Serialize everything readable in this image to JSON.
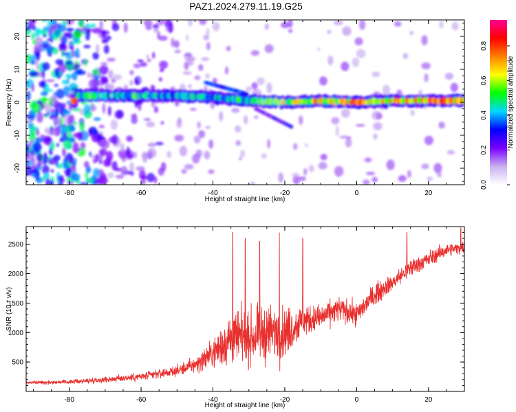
{
  "title": "PAZ1.2024.279.11.19.G25",
  "colors": {
    "snr_line": "#e8302e",
    "frame": "#000000"
  },
  "chart_data": [
    {
      "type": "heatmap",
      "title": "PAZ1.2024.279.11.19.G25",
      "xlabel": "Height of straight line (km)",
      "ylabel": "Frequency (Hz)",
      "xlim": [
        -92,
        30
      ],
      "ylim": [
        -25,
        25
      ],
      "xticks": [
        -80,
        -60,
        -40,
        -20,
        0,
        20
      ],
      "yticks": [
        -20,
        -10,
        0,
        10,
        20
      ],
      "colorbar": {
        "label": "Normalized spectral amplitude",
        "range": [
          0,
          0.95
        ],
        "ticks": [
          "0.0",
          "0.2",
          "0.4",
          "0.6",
          "0.8"
        ],
        "tick_values": [
          0,
          0.2,
          0.4,
          0.6,
          0.8
        ],
        "colormap": [
          "#ffffff",
          "#c9b0f0",
          "#7a00ff",
          "#0000ff",
          "#00d8ff",
          "#00ff00",
          "#ffff00",
          "#ff8000",
          "#ff0000",
          "#ff0090"
        ]
      },
      "ridge": {
        "description_points": [
          {
            "x": -78,
            "y": 2.0,
            "amp": 0.5
          },
          {
            "x": -70,
            "y": 2.0,
            "amp": 0.6
          },
          {
            "x": -60,
            "y": 2.0,
            "amp": 0.55
          },
          {
            "x": -50,
            "y": 2.0,
            "amp": 0.45
          },
          {
            "x": -40,
            "y": 1.5,
            "amp": 0.5
          },
          {
            "x": -30,
            "y": 0.5,
            "amp": 0.55
          },
          {
            "x": -20,
            "y": 0.0,
            "amp": 0.7
          },
          {
            "x": -10,
            "y": 0.5,
            "amp": 0.8
          },
          {
            "x": 0,
            "y": 0.0,
            "amp": 0.85
          },
          {
            "x": 10,
            "y": 0.5,
            "amp": 0.85
          },
          {
            "x": 20,
            "y": 0.5,
            "amp": 0.9
          },
          {
            "x": 30,
            "y": 0.5,
            "amp": 0.85
          }
        ]
      }
    },
    {
      "type": "line",
      "xlabel": "Height of straight line (km)",
      "ylabel": "SNR (10 * v/v)",
      "xlim": [
        -92,
        30
      ],
      "ylim": [
        0,
        2800
      ],
      "xticks": [
        -80,
        -60,
        -40,
        -20,
        0,
        20
      ],
      "yticks": [
        500,
        1000,
        1500,
        2000,
        2500
      ],
      "series": [
        {
          "envelope": [
            {
              "x": -92,
              "mean": 150,
              "spread": 50
            },
            {
              "x": -80,
              "mean": 160,
              "spread": 60
            },
            {
              "x": -70,
              "mean": 200,
              "spread": 100
            },
            {
              "x": -60,
              "mean": 250,
              "spread": 130
            },
            {
              "x": -50,
              "mean": 350,
              "spread": 170
            },
            {
              "x": -45,
              "mean": 450,
              "spread": 250
            },
            {
              "x": -40,
              "mean": 650,
              "spread": 450
            },
            {
              "x": -35,
              "mean": 900,
              "spread": 900
            },
            {
              "x": -30,
              "mean": 900,
              "spread": 800
            },
            {
              "x": -25,
              "mean": 1000,
              "spread": 900
            },
            {
              "x": -20,
              "mean": 1000,
              "spread": 800
            },
            {
              "x": -15,
              "mean": 1200,
              "spread": 500
            },
            {
              "x": -10,
              "mean": 1250,
              "spread": 400
            },
            {
              "x": -5,
              "mean": 1400,
              "spread": 400
            },
            {
              "x": 0,
              "mean": 1300,
              "spread": 350
            },
            {
              "x": 5,
              "mean": 1650,
              "spread": 350
            },
            {
              "x": 10,
              "mean": 1850,
              "spread": 250
            },
            {
              "x": 15,
              "mean": 2100,
              "spread": 300
            },
            {
              "x": 20,
              "mean": 2250,
              "spread": 250
            },
            {
              "x": 25,
              "mean": 2400,
              "spread": 200
            },
            {
              "x": 30,
              "mean": 2450,
              "spread": 180
            }
          ],
          "peaks": [
            {
              "x": -34.5,
              "y": 2700
            },
            {
              "x": -31,
              "y": 2600
            },
            {
              "x": -27,
              "y": 2550
            },
            {
              "x": -21.5,
              "y": 2700
            },
            {
              "x": -15,
              "y": 2600
            },
            {
              "x": 14,
              "y": 2700
            },
            {
              "x": 29,
              "y": 2780
            }
          ]
        }
      ]
    }
  ]
}
